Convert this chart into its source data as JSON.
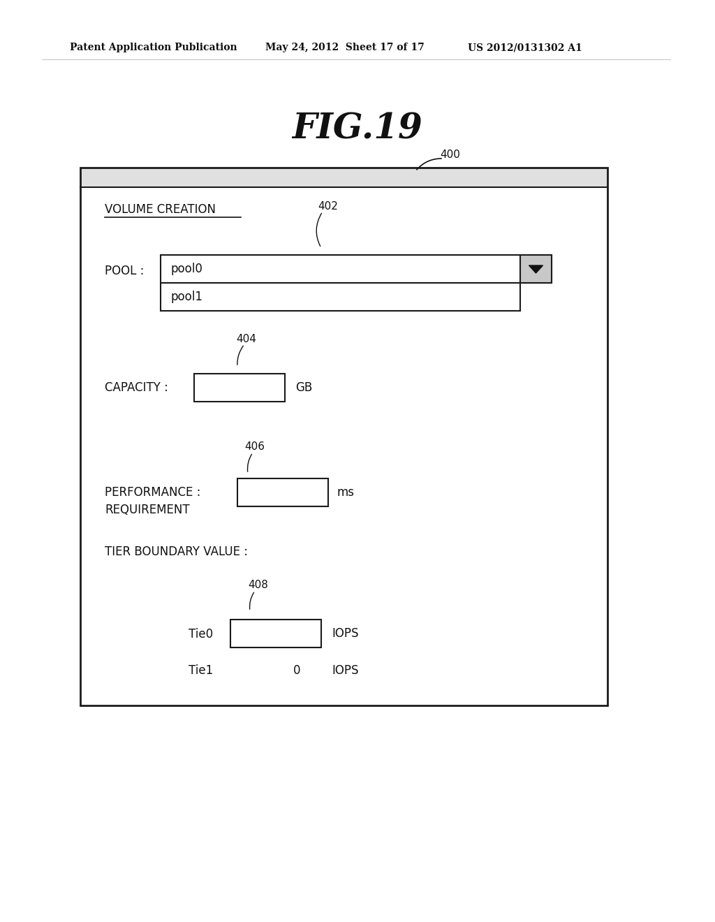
{
  "background_color": "#ffffff",
  "header_line1": "Patent Application Publication",
  "header_line2": "May 24, 2012  Sheet 17 of 17",
  "header_line3": "US 2012/0131302 A1",
  "fig_title": "FIG.19",
  "label_400": "400",
  "label_402": "402",
  "label_404": "404",
  "label_406": "406",
  "label_408": "408",
  "section_title": "VOLUME CREATION",
  "pool_label": "POOL :",
  "pool0_text": "pool0",
  "pool1_text": "pool1",
  "capacity_label": "CAPACITY :",
  "capacity_unit": "GB",
  "performance_label_line1": "PERFORMANCE :",
  "performance_label_line2": "REQUIREMENT",
  "performance_unit": "ms",
  "tier_boundary_label": "TIER BOUNDARY VALUE :",
  "tie0_label": "Tie0",
  "tie0_unit": "IOPS",
  "tie1_label": "Tie1",
  "tie1_value": "0",
  "tie1_unit": "IOPS"
}
